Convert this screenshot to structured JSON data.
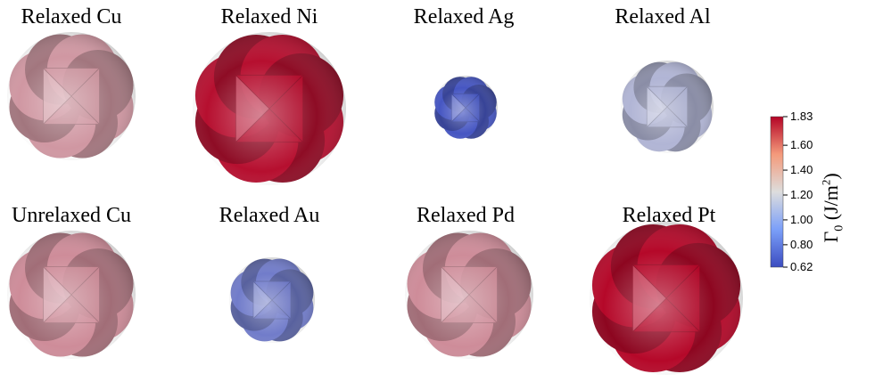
{
  "panels": [
    {
      "label": "Relaxed Cu",
      "value": 1.42
    },
    {
      "label": "Relaxed Ni",
      "value": 1.8
    },
    {
      "label": "Relaxed Ag",
      "value": 0.66
    },
    {
      "label": "Relaxed Al",
      "value": 1.06
    },
    {
      "label": "Unrelaxed Cu",
      "value": 1.45
    },
    {
      "label": "Relaxed Au",
      "value": 0.82
    },
    {
      "label": "Relaxed Pd",
      "value": 1.45
    },
    {
      "label": "Relaxed Pt",
      "value": 1.82
    }
  ],
  "colorbar": {
    "title_symbol": "Γ",
    "title_subscript": "0",
    "title_units": " (J/m",
    "title_sup": "2",
    "title_close": ")",
    "min": 0.62,
    "max": 1.83,
    "ticks": [
      "1.83",
      "1.60",
      "1.40",
      "1.20",
      "1.00",
      "0.80",
      "0.62"
    ],
    "colors": {
      "low": "#3b4cc0",
      "mid": "#dddddd",
      "high": "#b40426"
    }
  }
}
